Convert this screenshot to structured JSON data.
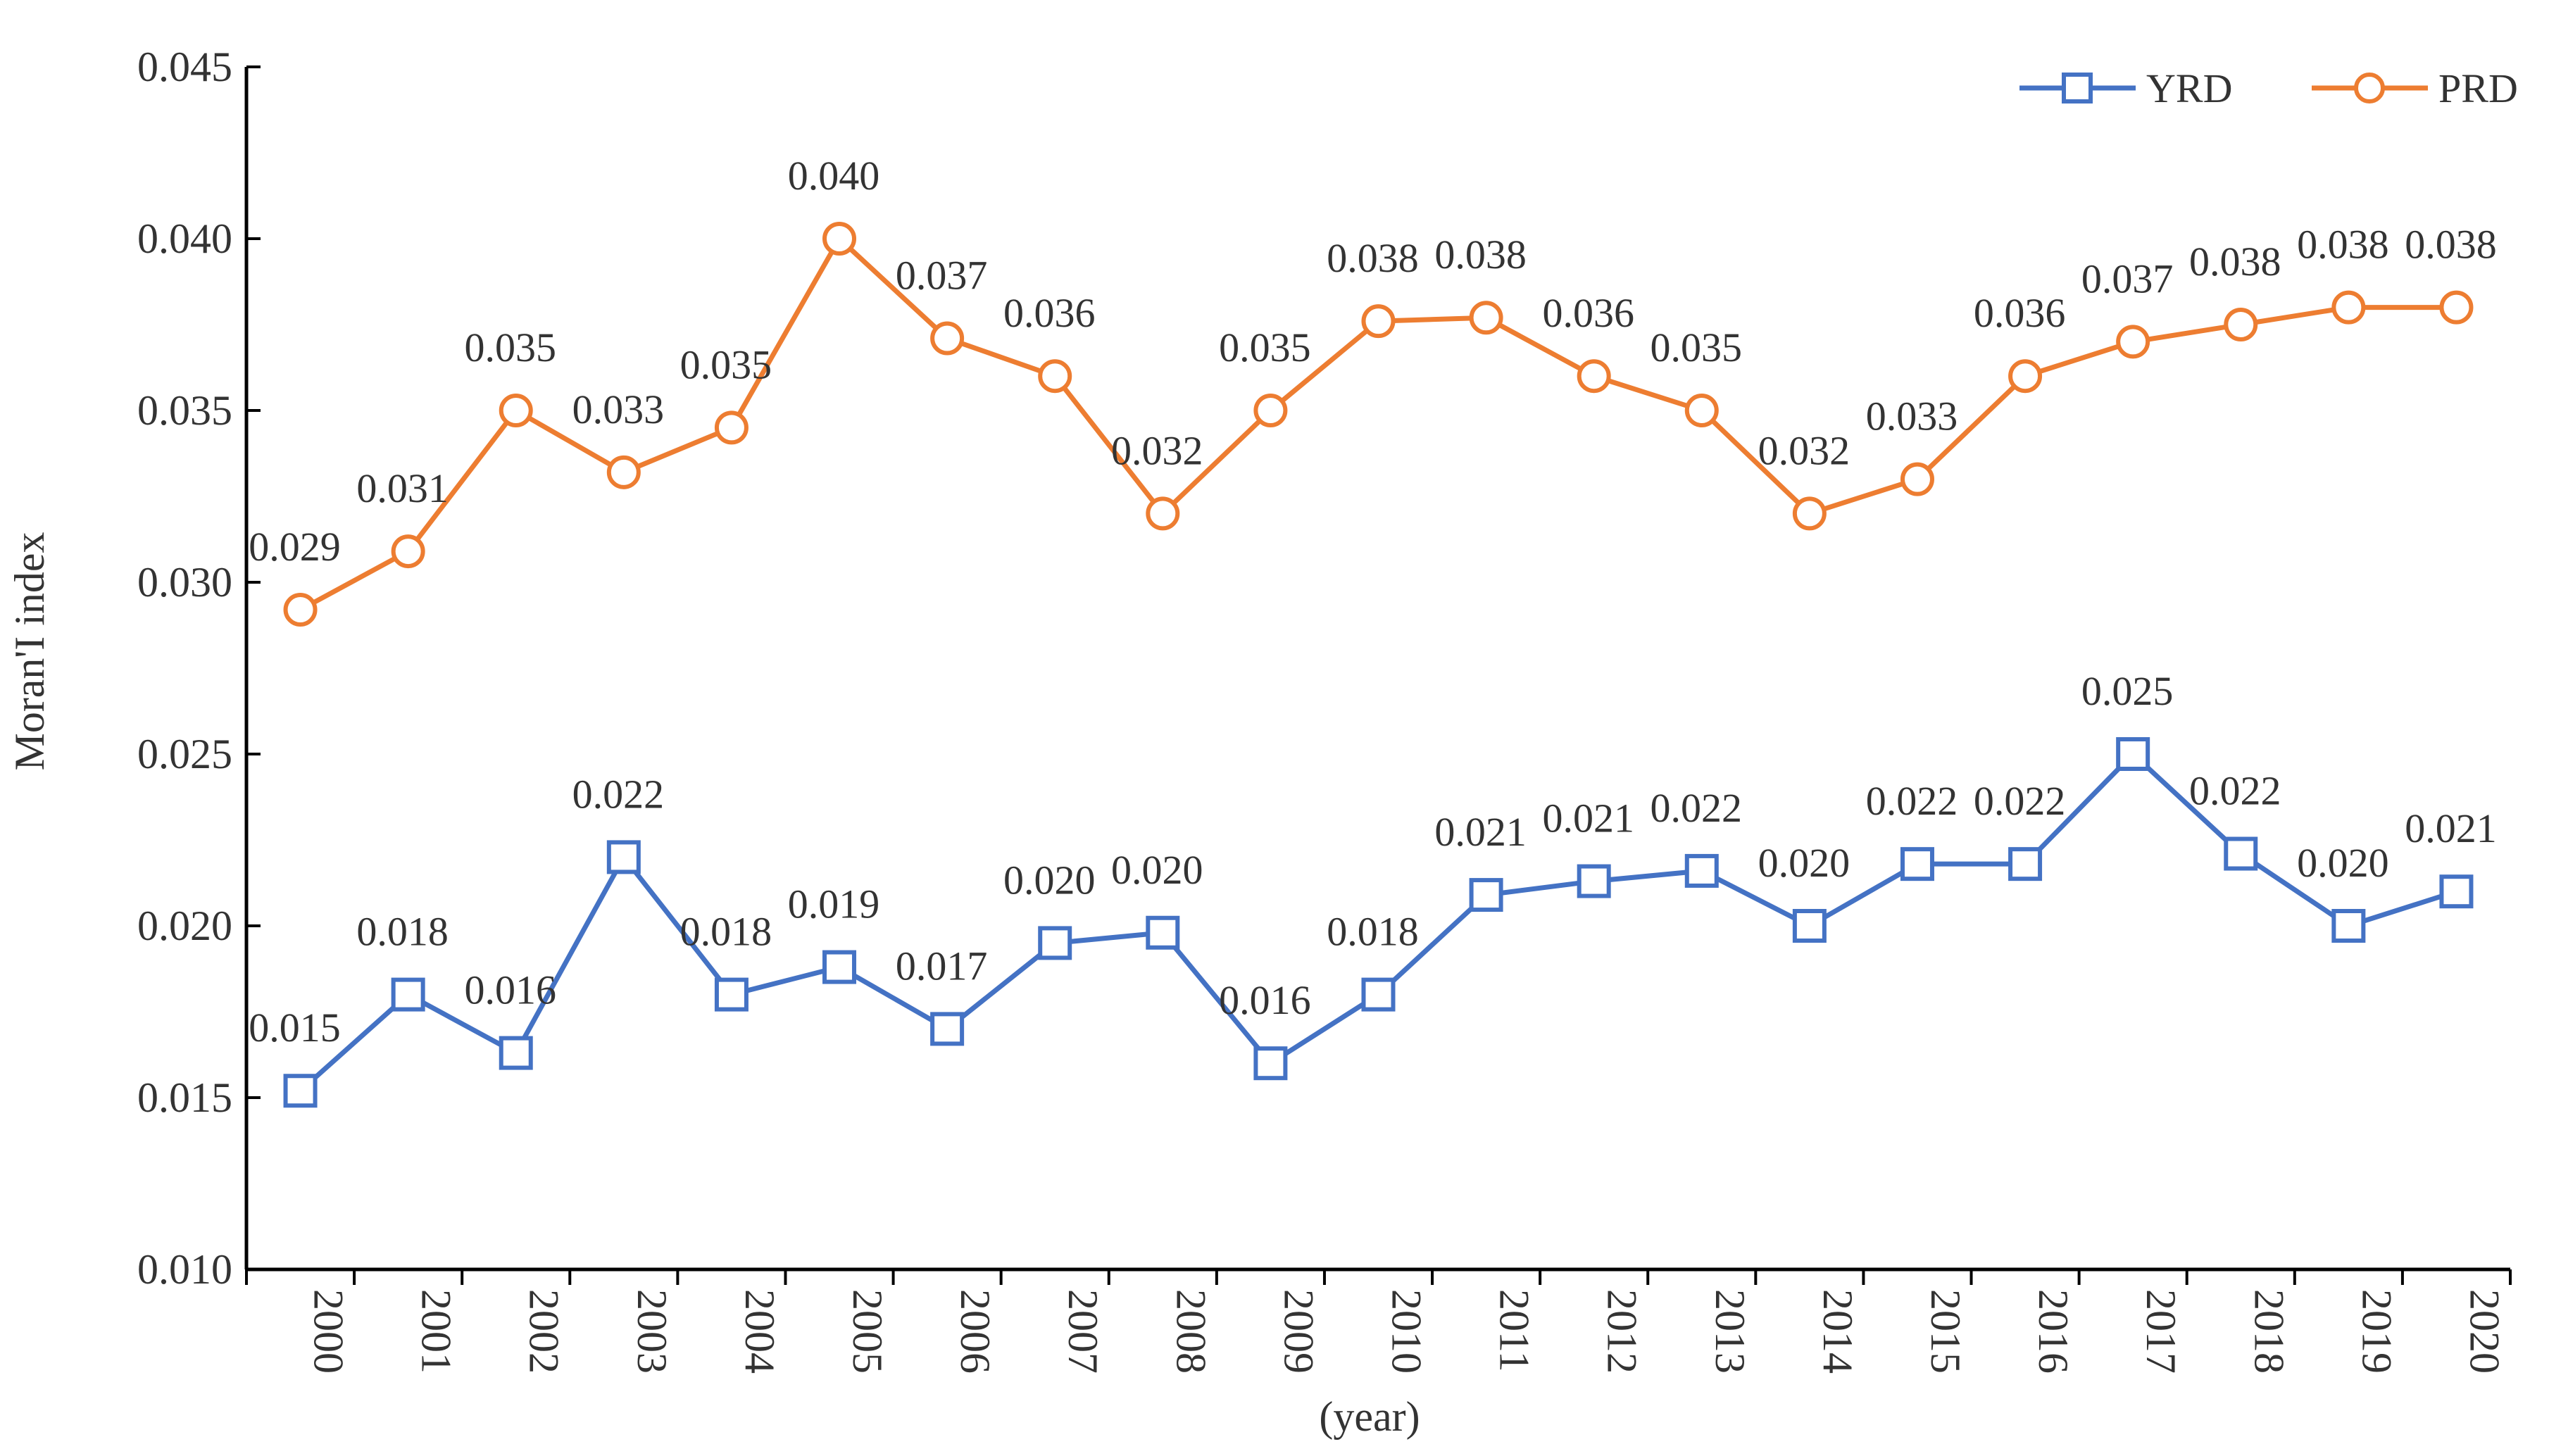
{
  "chart_data": {
    "type": "line",
    "xlabel": "(year)",
    "ylabel": "Moran'I index",
    "ylim": [
      0.01,
      0.045
    ],
    "yticks": [
      0.01,
      0.015,
      0.02,
      0.025,
      0.03,
      0.035,
      0.04,
      0.045
    ],
    "ytick_labels": [
      "0.010",
      "0.015",
      "0.020",
      "0.025",
      "0.030",
      "0.035",
      "0.040",
      "0.045"
    ],
    "grid": false,
    "legend_position": "top-right",
    "categories": [
      "2000",
      "2001",
      "2002",
      "2003",
      "2004",
      "2005",
      "2006",
      "2007",
      "2008",
      "2009",
      "2010",
      "2011",
      "2012",
      "2013",
      "2014",
      "2015",
      "2016",
      "2017",
      "2018",
      "2019",
      "2020"
    ],
    "series": [
      {
        "name": "YRD",
        "color": "#4472C4",
        "marker": "square",
        "values": [
          0.0152,
          0.018,
          0.0163,
          0.022,
          0.018,
          0.0188,
          0.017,
          0.0195,
          0.0198,
          0.016,
          0.018,
          0.0209,
          0.0213,
          0.0216,
          0.02,
          0.0218,
          0.0218,
          0.025,
          0.0221,
          0.02,
          0.021
        ],
        "labels": [
          "0.015",
          "0.018",
          "0.016",
          "0.022",
          "0.018",
          "0.019",
          "0.017",
          "0.020",
          "0.020",
          "0.016",
          "0.018",
          "0.021",
          "0.021",
          "0.022",
          "0.020",
          "0.022",
          "0.022",
          "0.025",
          "0.022",
          "0.020",
          "0.021"
        ]
      },
      {
        "name": "PRD",
        "color": "#ED7D31",
        "marker": "circle",
        "values": [
          0.0292,
          0.0309,
          0.035,
          0.0332,
          0.0345,
          0.04,
          0.0371,
          0.036,
          0.032,
          0.035,
          0.0376,
          0.0377,
          0.036,
          0.035,
          0.032,
          0.033,
          0.036,
          0.037,
          0.0375,
          0.038,
          0.038
        ],
        "labels": [
          "0.029",
          "0.031",
          "0.035",
          "0.033",
          "0.035",
          "0.040",
          "0.037",
          "0.036",
          "0.032",
          "0.035",
          "0.038",
          "0.038",
          "0.036",
          "0.035",
          "0.032",
          "0.033",
          "0.036",
          "0.037",
          "0.038",
          "0.038",
          "0.038"
        ]
      }
    ]
  }
}
